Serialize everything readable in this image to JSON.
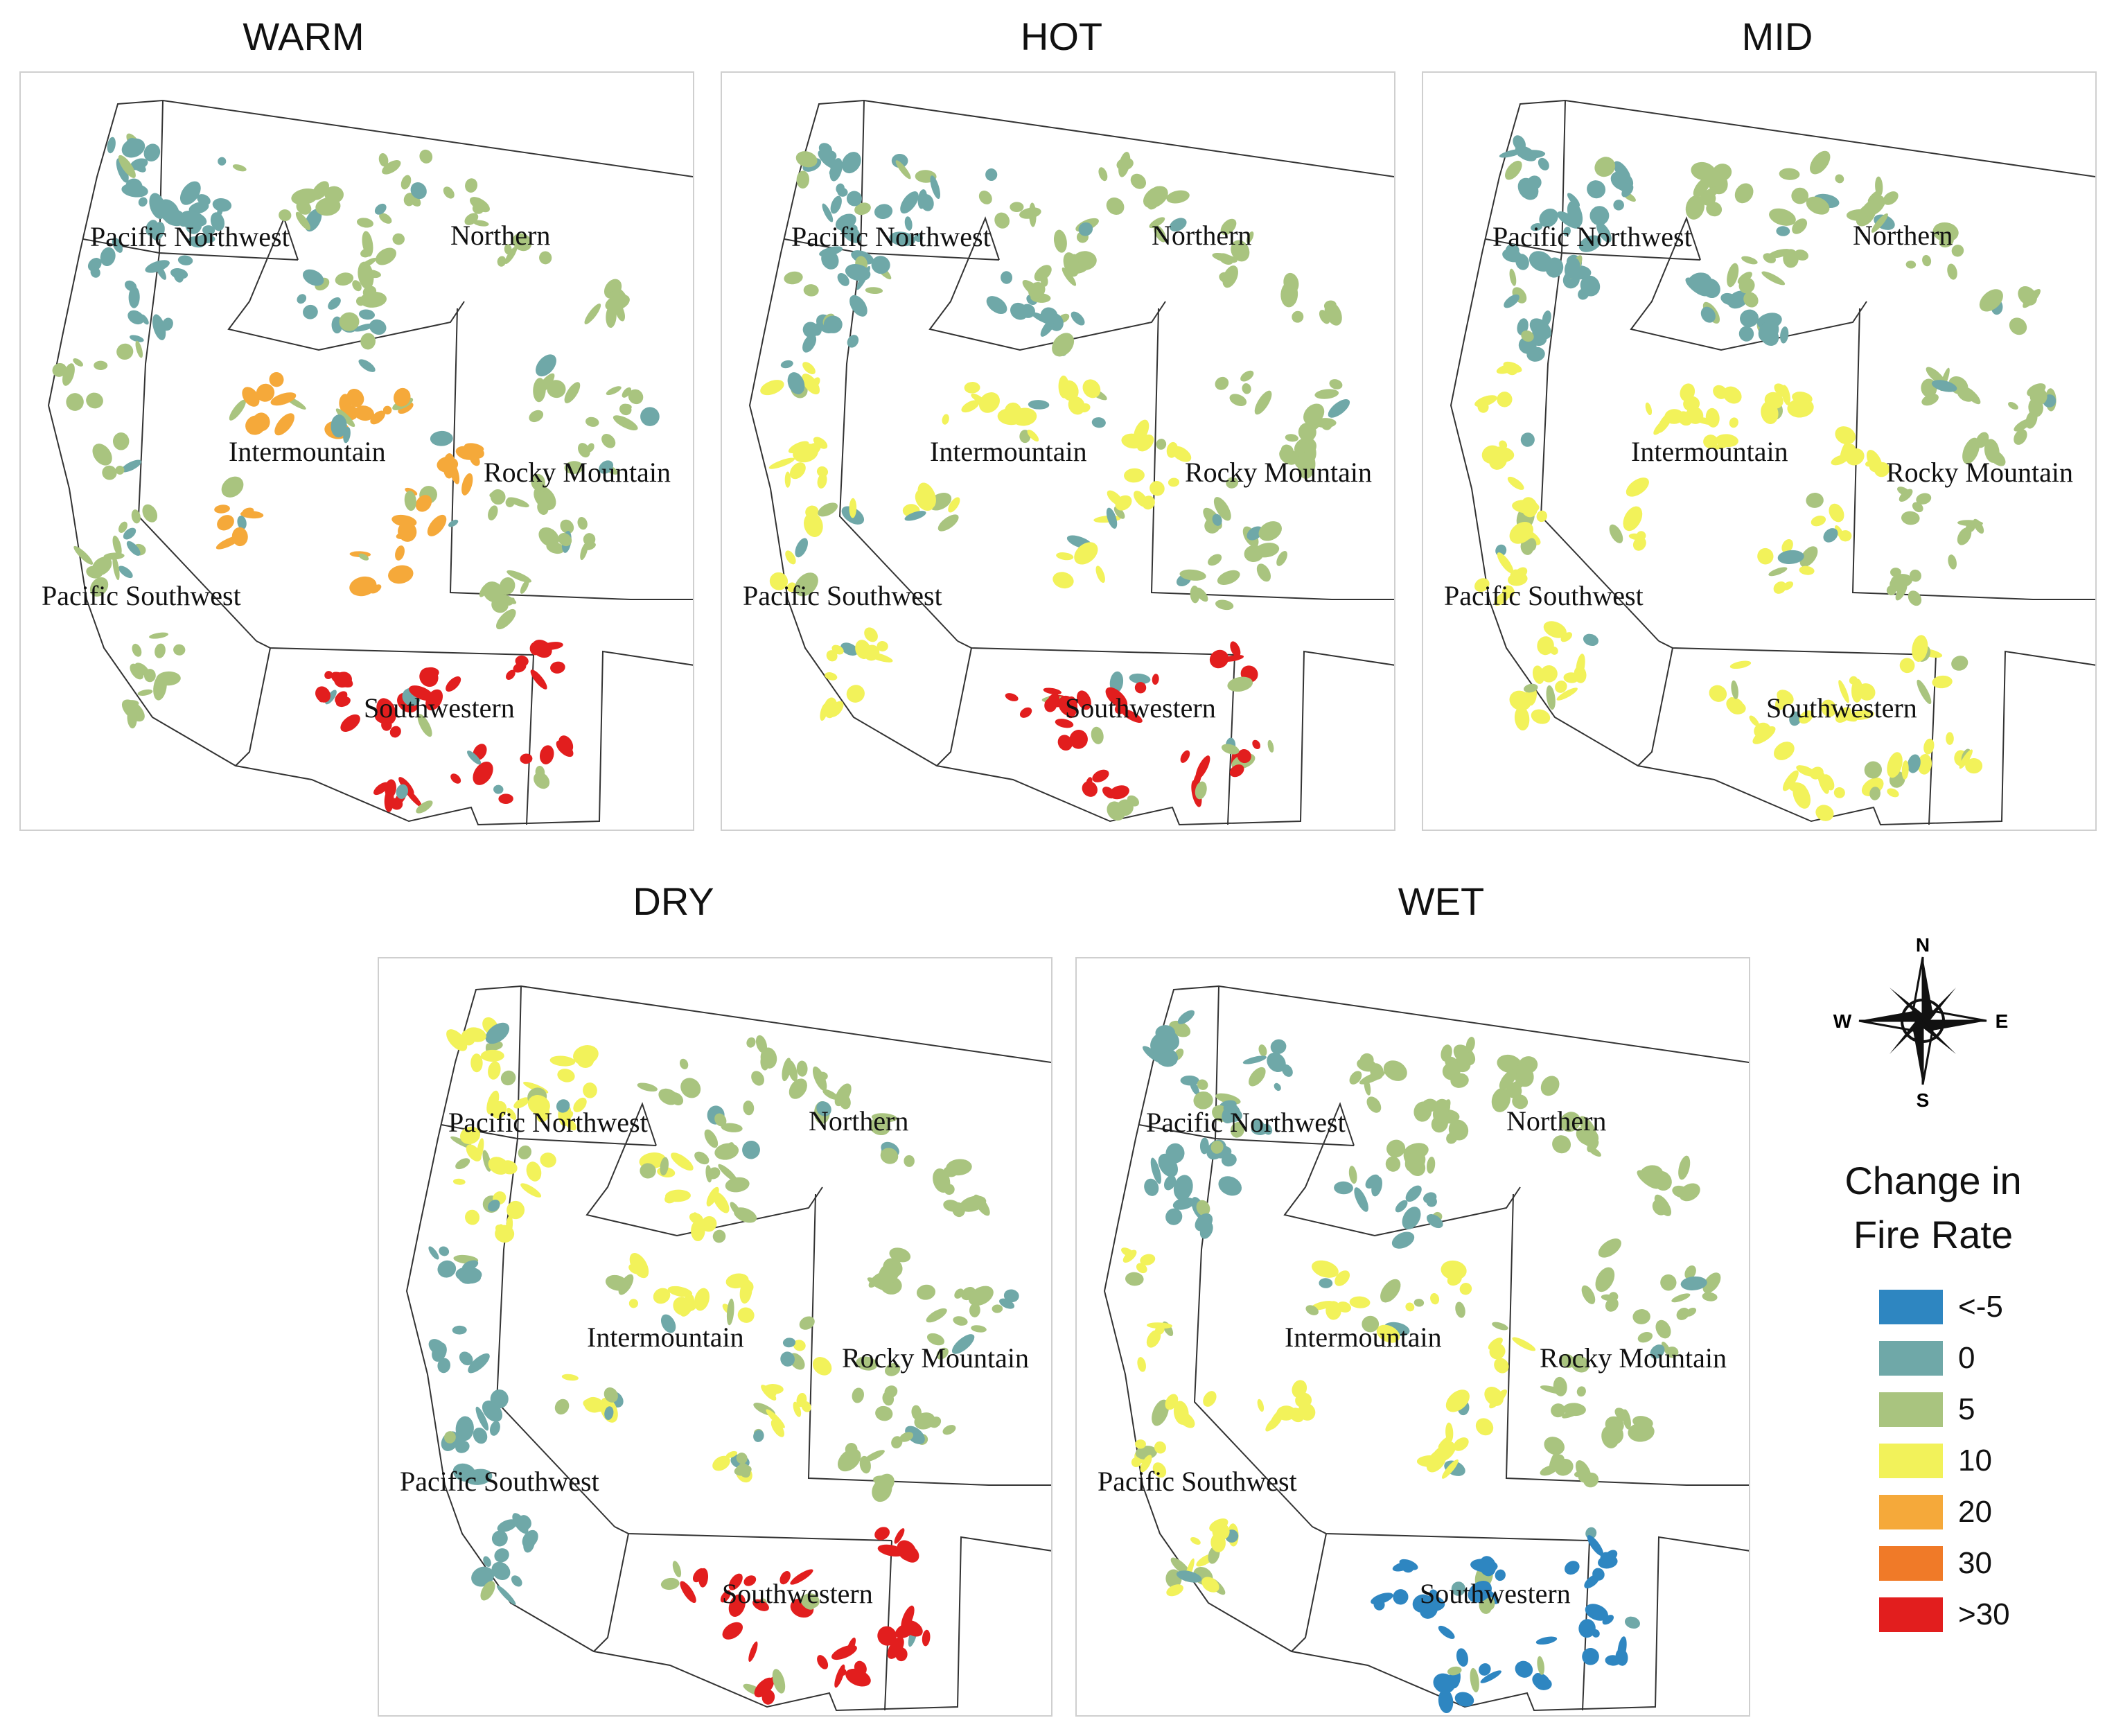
{
  "panels": [
    {
      "title": "WARM",
      "variant": "warm"
    },
    {
      "title": "HOT",
      "variant": "hot"
    },
    {
      "title": "MID",
      "variant": "mid"
    },
    {
      "title": "DRY",
      "variant": "dry"
    },
    {
      "title": "WET",
      "variant": "wet"
    }
  ],
  "regions": {
    "pacific_northwest": "Pacific Northwest",
    "northern": "Northern",
    "intermountain": "Intermountain",
    "rocky_mountain": "Rocky Mountain",
    "pacific_southwest": "Pacific Southwest",
    "southwestern": "Southwestern"
  },
  "compass": {
    "n": "N",
    "s": "S",
    "e": "E",
    "w": "W"
  },
  "legend": {
    "title_line1": "Change in",
    "title_line2": "Fire Rate",
    "items": [
      {
        "label": "<-5",
        "color": "#2e86c1"
      },
      {
        "label": "0",
        "color": "#6fa8a8"
      },
      {
        "label": "5",
        "color": "#a9c47f"
      },
      {
        "label": "10",
        "color": "#f2f25a"
      },
      {
        "label": "20",
        "color": "#f5a93a"
      },
      {
        "label": "30",
        "color": "#f07a28"
      },
      {
        "label": ">30",
        "color": "#e21e1e"
      }
    ]
  },
  "region_change": {
    "warm": {
      "pacific_northwest": "0",
      "northern": "5",
      "intermountain": "20",
      "rocky_mountain": "5",
      "pacific_southwest": "5",
      "southwestern": ">30"
    },
    "hot": {
      "pacific_northwest": "0",
      "northern": "5",
      "intermountain": "10",
      "rocky_mountain": "5",
      "pacific_southwest": "10",
      "southwestern": ">30"
    },
    "mid": {
      "pacific_northwest": "0",
      "northern": "5",
      "intermountain": "10",
      "rocky_mountain": "5",
      "pacific_southwest": "10",
      "southwestern": "10"
    },
    "dry": {
      "pacific_northwest": "10",
      "northern": "5",
      "intermountain": "10",
      "rocky_mountain": "5",
      "pacific_southwest": "0",
      "southwestern": ">30"
    },
    "wet": {
      "pacific_northwest": "0",
      "northern": "5",
      "intermountain": "10",
      "rocky_mountain": "5",
      "pacific_southwest": "10",
      "southwestern": "<-5"
    }
  }
}
